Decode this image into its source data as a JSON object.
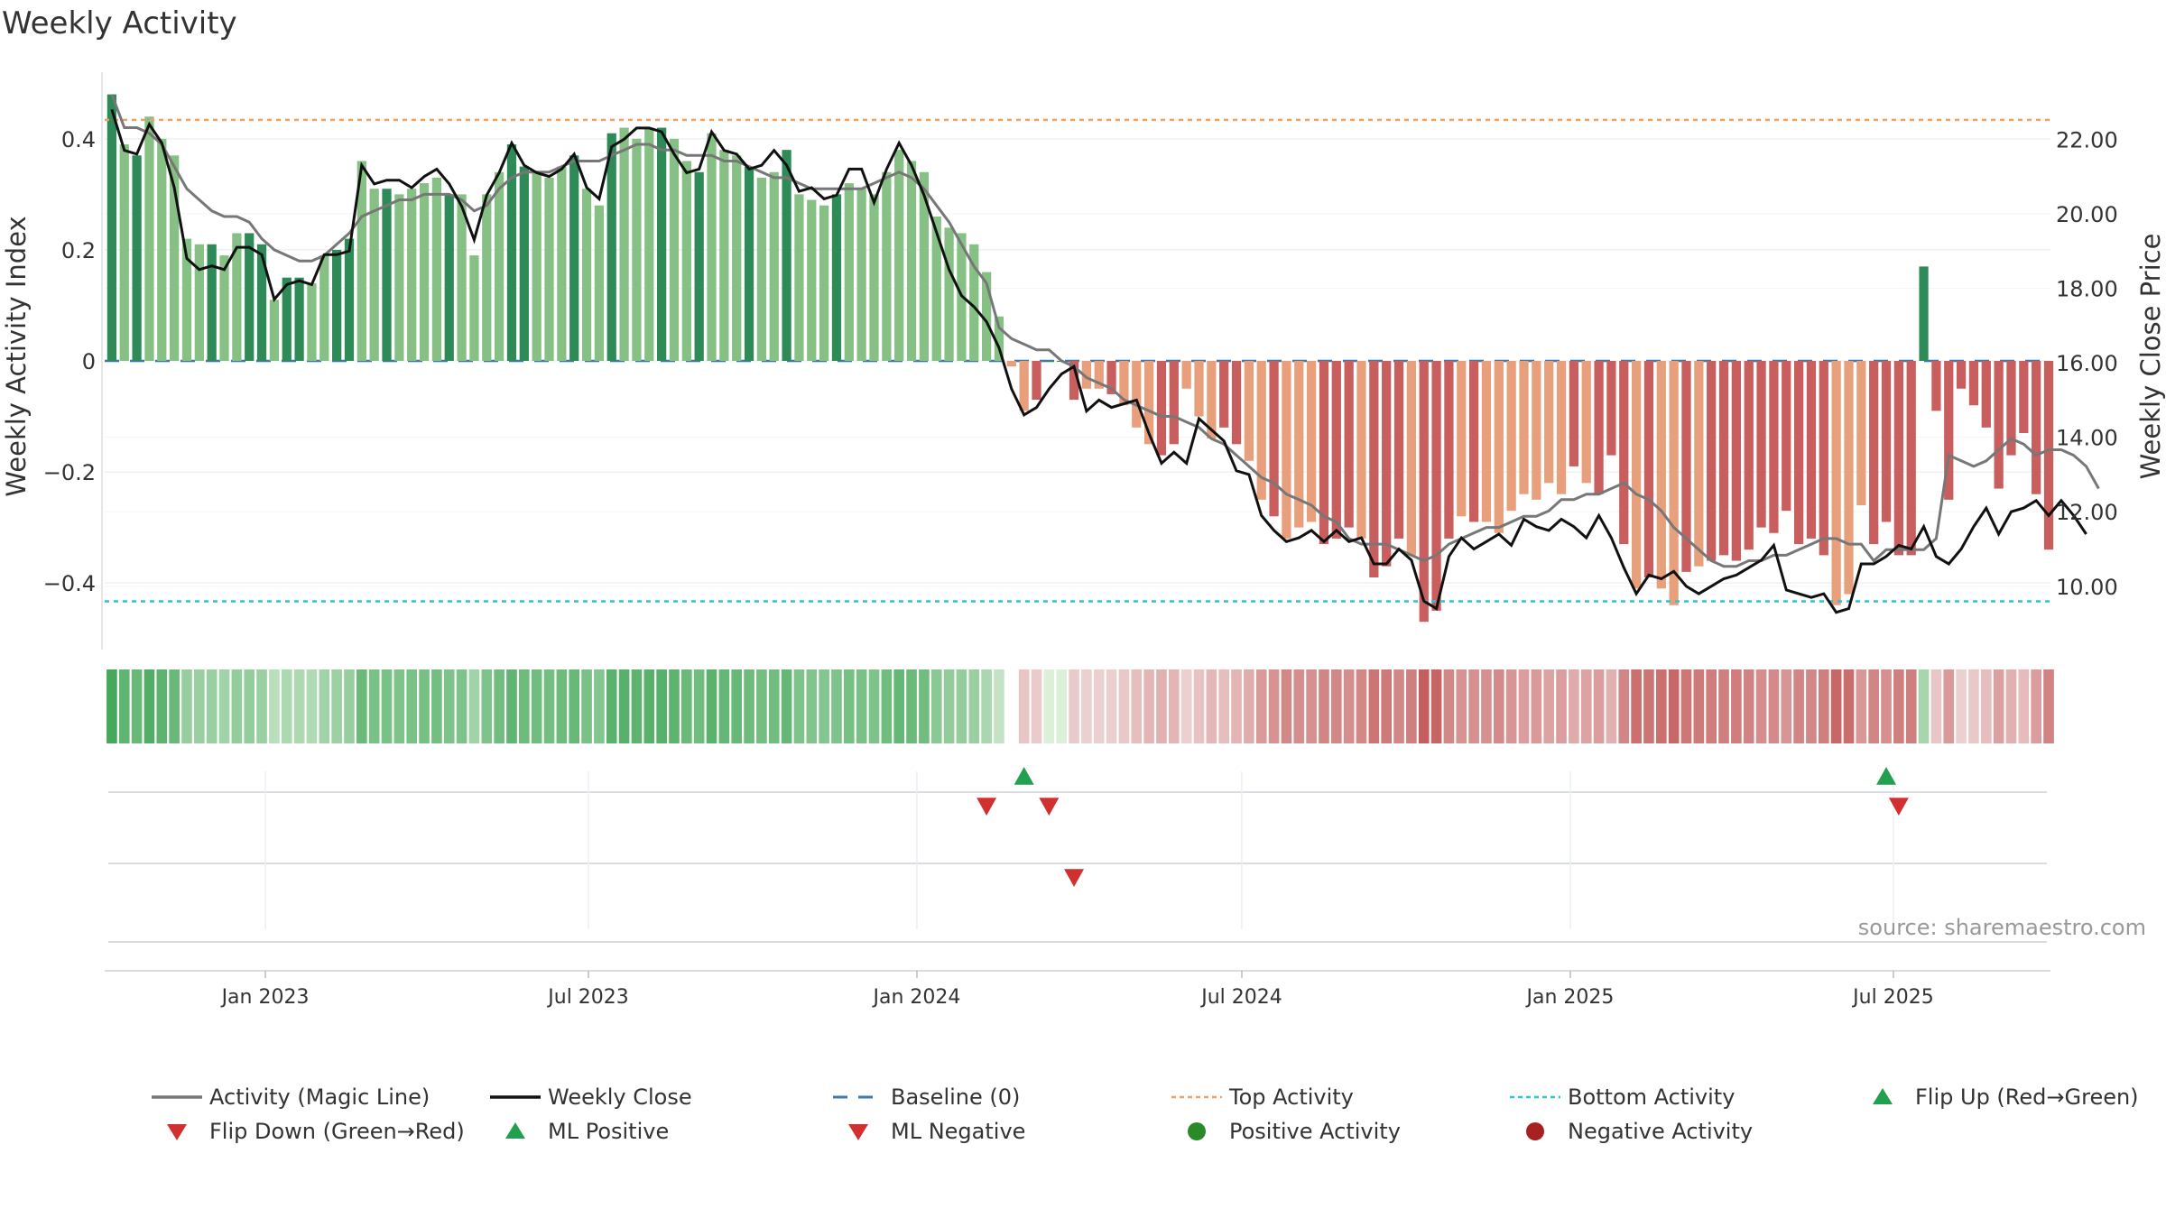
{
  "title": "Weekly Activity",
  "source": "source: sharemaestro.com",
  "colors": {
    "green_dark": "#2e8b57",
    "green_light": "#86c084",
    "red_dark": "#c95e5e",
    "red_light": "#e8a07c",
    "magic_line": "#777777",
    "close": "#111111",
    "baseline": "#3a78b0",
    "top": "#f0a060",
    "bottom": "#27c5d6",
    "flip_up": "#22a050",
    "flip_down": "#d03030"
  },
  "legend": [
    {
      "label": "Activity (Magic Line)",
      "symbol": "line",
      "color": "#777777"
    },
    {
      "label": "Weekly Close",
      "symbol": "line",
      "color": "#111111"
    },
    {
      "label": "Baseline (0)",
      "symbol": "dash",
      "color": "#3a78b0"
    },
    {
      "label": "Top Activity",
      "symbol": "dot-line",
      "color": "#f0a060"
    },
    {
      "label": "Bottom Activity",
      "symbol": "dot-line",
      "color": "#27c5d6"
    },
    {
      "label": "Flip Up (Red→Green)",
      "symbol": "tri-up",
      "color": "#22a050"
    },
    {
      "label": "Flip Down (Green→Red)",
      "symbol": "tri-down",
      "color": "#d03030"
    },
    {
      "label": "ML Positive",
      "symbol": "tri-up",
      "color": "#22a050"
    },
    {
      "label": "ML Negative",
      "symbol": "tri-down",
      "color": "#d03030"
    },
    {
      "label": "Positive Activity",
      "symbol": "circle",
      "color": "#2a8a2a"
    },
    {
      "label": "Negative Activity",
      "symbol": "circle",
      "color": "#a82020"
    }
  ],
  "chart_data": {
    "type": "bar",
    "title": "Weekly Activity",
    "ylabel": "Weekly Activity Index",
    "y2label": "Weekly Close Price",
    "ylim": [
      -0.52,
      0.52
    ],
    "y2lim": [
      8.3,
      23.8
    ],
    "yticks": [
      0.4,
      0.2,
      0,
      -0.2,
      -0.4
    ],
    "ytick_labels": [
      "0.4",
      "0.2",
      "0",
      "−0.2",
      "−0.4"
    ],
    "y2ticks": [
      22,
      20,
      18,
      16,
      14,
      12,
      10
    ],
    "y2tick_labels": [
      "22.00",
      "20.00",
      "18.00",
      "16.00",
      "14.00",
      "12.00",
      "10.00"
    ],
    "xlim": [
      "2022-10-03",
      "2025-09-27"
    ],
    "xticks": [
      "2023-01-01",
      "2023-07-01",
      "2024-01-01",
      "2024-07-01",
      "2025-01-01",
      "2025-07-01"
    ],
    "xtick_labels": [
      "Jan 2023",
      "Jul 2023",
      "Jan 2024",
      "Jul 2024",
      "Jan 2025",
      "Jul 2025"
    ],
    "first_week": "2022-10-07",
    "activity": [
      0.48,
      0.39,
      0.37,
      0.44,
      0.4,
      0.37,
      0.22,
      0.21,
      0.21,
      0.19,
      0.23,
      0.23,
      0.21,
      0.11,
      0.15,
      0.15,
      0.14,
      0.19,
      0.2,
      0.22,
      0.36,
      0.31,
      0.31,
      0.3,
      0.31,
      0.32,
      0.33,
      0.3,
      0.3,
      0.19,
      0.3,
      0.34,
      0.39,
      0.35,
      0.34,
      0.33,
      0.35,
      0.37,
      0.31,
      0.28,
      0.41,
      0.42,
      0.4,
      0.42,
      0.42,
      0.4,
      0.36,
      0.34,
      0.41,
      0.38,
      0.37,
      0.35,
      0.33,
      0.34,
      0.38,
      0.3,
      0.29,
      0.28,
      0.3,
      0.32,
      0.31,
      0.3,
      0.34,
      0.38,
      0.36,
      0.34,
      0.26,
      0.24,
      0.23,
      0.21,
      0.16,
      0.08,
      -0.01,
      -0.09,
      -0.07,
      0.0,
      0.0,
      -0.07,
      -0.05,
      -0.05,
      -0.06,
      -0.08,
      -0.12,
      -0.15,
      -0.17,
      -0.15,
      -0.05,
      -0.1,
      -0.14,
      -0.12,
      -0.15,
      -0.18,
      -0.25,
      -0.28,
      -0.32,
      -0.3,
      -0.29,
      -0.33,
      -0.32,
      -0.3,
      -0.32,
      -0.39,
      -0.37,
      -0.32,
      -0.35,
      -0.47,
      -0.45,
      -0.32,
      -0.28,
      -0.29,
      -0.29,
      -0.31,
      -0.27,
      -0.24,
      -0.25,
      -0.22,
      -0.24,
      -0.19,
      -0.22,
      -0.24,
      -0.17,
      -0.33,
      -0.41,
      -0.39,
      -0.41,
      -0.44,
      -0.38,
      -0.37,
      -0.36,
      -0.35,
      -0.36,
      -0.34,
      -0.3,
      -0.31,
      -0.27,
      -0.33,
      -0.32,
      -0.35,
      -0.44,
      -0.42,
      -0.26,
      -0.33,
      -0.29,
      -0.35,
      -0.35,
      0.17,
      -0.09,
      -0.25,
      -0.05,
      -0.08,
      -0.12,
      -0.23,
      -0.17,
      -0.13,
      -0.24,
      -0.34
    ],
    "activity_shade": "dldllllldllddlddllddlldlllldllllddllldlldllldlldllldlldllldlllllllllllllllddddlldlllddlllddlldllldddldddldddldllllllldldddldlldlddddddddddllldddddddddddddddddd",
    "magic_line": [
      0.48,
      0.42,
      0.42,
      0.41,
      0.39,
      0.35,
      0.31,
      0.29,
      0.27,
      0.26,
      0.26,
      0.25,
      0.22,
      0.2,
      0.19,
      0.18,
      0.18,
      0.19,
      0.21,
      0.23,
      0.26,
      0.27,
      0.28,
      0.29,
      0.29,
      0.3,
      0.3,
      0.3,
      0.29,
      0.27,
      0.28,
      0.31,
      0.33,
      0.34,
      0.34,
      0.34,
      0.35,
      0.36,
      0.36,
      0.36,
      0.37,
      0.38,
      0.39,
      0.39,
      0.38,
      0.38,
      0.37,
      0.37,
      0.37,
      0.36,
      0.36,
      0.35,
      0.34,
      0.33,
      0.33,
      0.32,
      0.31,
      0.31,
      0.31,
      0.31,
      0.31,
      0.32,
      0.33,
      0.34,
      0.33,
      0.31,
      0.28,
      0.25,
      0.21,
      0.17,
      0.14,
      0.06,
      0.04,
      0.03,
      0.02,
      0.02,
      0.0,
      -0.01,
      -0.03,
      -0.04,
      -0.05,
      -0.07,
      -0.08,
      -0.09,
      -0.1,
      -0.1,
      -0.11,
      -0.12,
      -0.14,
      -0.15,
      -0.17,
      -0.19,
      -0.21,
      -0.22,
      -0.24,
      -0.25,
      -0.26,
      -0.28,
      -0.29,
      -0.32,
      -0.33,
      -0.33,
      -0.33,
      -0.34,
      -0.35,
      -0.36,
      -0.35,
      -0.33,
      -0.32,
      -0.31,
      -0.3,
      -0.3,
      -0.29,
      -0.28,
      -0.28,
      -0.27,
      -0.25,
      -0.25,
      -0.24,
      -0.24,
      -0.23,
      -0.22,
      -0.24,
      -0.25,
      -0.27,
      -0.3,
      -0.32,
      -0.34,
      -0.36,
      -0.37,
      -0.37,
      -0.36,
      -0.36,
      -0.35,
      -0.35,
      -0.34,
      -0.33,
      -0.32,
      -0.32,
      -0.33,
      -0.33,
      -0.36,
      -0.34,
      -0.34,
      -0.34,
      -0.34,
      -0.32,
      -0.17,
      -0.18,
      -0.19,
      -0.18,
      -0.16,
      -0.14,
      -0.15,
      -0.17,
      -0.16,
      -0.16,
      -0.17,
      -0.19,
      -0.23
    ],
    "weekly_close": [
      22.8,
      21.7,
      21.6,
      22.4,
      21.9,
      20.7,
      18.8,
      18.5,
      18.6,
      18.5,
      19.1,
      19.1,
      18.9,
      17.7,
      18.1,
      18.2,
      18.1,
      18.9,
      18.9,
      19.0,
      21.3,
      20.8,
      20.9,
      20.9,
      20.7,
      21.0,
      21.2,
      20.8,
      20.2,
      19.3,
      20.5,
      21.1,
      21.9,
      21.3,
      21.1,
      21.0,
      21.2,
      21.6,
      20.7,
      20.4,
      21.8,
      22.0,
      22.3,
      22.3,
      22.2,
      21.6,
      21.1,
      21.2,
      22.2,
      21.7,
      21.6,
      21.2,
      21.3,
      21.7,
      21.3,
      20.6,
      20.7,
      20.4,
      20.5,
      21.2,
      21.2,
      20.3,
      21.2,
      21.9,
      21.3,
      20.5,
      19.5,
      18.5,
      17.8,
      17.5,
      17.1,
      16.4,
      15.3,
      14.6,
      14.8,
      15.3,
      15.7,
      15.9,
      14.7,
      15.0,
      14.8,
      14.9,
      15.0,
      14.1,
      13.3,
      13.6,
      13.3,
      14.5,
      14.2,
      13.9,
      13.1,
      13.0,
      11.9,
      11.5,
      11.2,
      11.3,
      11.5,
      11.2,
      11.5,
      11.2,
      11.3,
      10.6,
      10.6,
      11.0,
      10.7,
      9.6,
      9.4,
      10.8,
      11.3,
      11.0,
      11.2,
      11.4,
      11.1,
      11.8,
      11.6,
      11.5,
      11.8,
      11.6,
      11.3,
      11.9,
      11.3,
      10.5,
      9.8,
      10.3,
      10.2,
      10.4,
      10.0,
      9.8,
      10.0,
      10.2,
      10.3,
      10.5,
      10.7,
      11.1,
      9.9,
      9.8,
      9.7,
      9.8,
      9.3,
      9.4,
      10.6,
      10.6,
      10.8,
      11.1,
      11.0,
      11.6,
      10.8,
      10.6,
      11.0,
      11.6,
      12.1,
      11.4,
      12.0,
      12.1,
      12.3,
      11.9,
      12.3,
      11.9,
      11.4
    ],
    "top_activity": 0.434,
    "bottom_activity": -0.433,
    "baseline": 0,
    "status_strip_gaps": [
      72
    ],
    "markers": [
      {
        "row": 1,
        "type": "Flip Up (Red→Green)",
        "date": "2024-03-01"
      },
      {
        "row": 1,
        "type": "Flip Up (Red→Green)",
        "date": "2025-06-27"
      },
      {
        "row": 1,
        "type": "Flip Down (Green→Red)",
        "date": "2024-02-09"
      },
      {
        "row": 1,
        "type": "Flip Down (Green→Red)",
        "date": "2024-03-15"
      },
      {
        "row": 1,
        "type": "Flip Down (Green→Red)",
        "date": "2025-07-04"
      },
      {
        "row": 2,
        "type": "ML Negative",
        "date": "2024-03-29"
      }
    ],
    "grid": true,
    "legend_position": "bottom"
  }
}
